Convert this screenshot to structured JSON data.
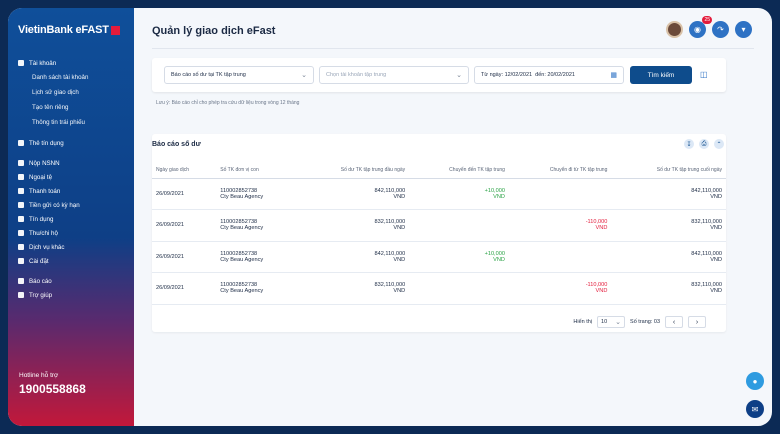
{
  "brand": "VietinBank eFAST",
  "sidebar": {
    "items": [
      {
        "label": "Tài khoản",
        "icon": "account-icon",
        "subs": [
          "Danh sách tài khoản",
          "Lịch sử giao dịch",
          "Tạo tên riêng",
          "Thông tin trái phiếu"
        ]
      },
      {
        "label": "Thẻ tín dụng",
        "icon": "credit-card-icon"
      },
      {
        "label": "Nộp NSNN",
        "icon": "tax-icon"
      },
      {
        "label": "Ngoại tệ",
        "icon": "currency-icon"
      },
      {
        "label": "Thanh toán",
        "icon": "payment-icon"
      },
      {
        "label": "Tiền gửi có kỳ hạn",
        "icon": "deposit-icon"
      },
      {
        "label": "Tín dụng",
        "icon": "loan-icon"
      },
      {
        "label": "Thu/chi hộ",
        "icon": "collection-icon"
      },
      {
        "label": "Dịch vụ khác",
        "icon": "services-icon"
      },
      {
        "label": "Cài đặt",
        "icon": "settings-icon"
      },
      {
        "label": "Báo cáo",
        "icon": "report-icon"
      },
      {
        "label": "Trợ giúp",
        "icon": "help-icon"
      }
    ],
    "hotline_label": "Hotline hỗ trợ",
    "hotline_number": "1900558868"
  },
  "header": {
    "title": "Quản lý giao dịch eFast",
    "notification_count": "25"
  },
  "filters": {
    "report_type": "Báo cáo số dư tại TK tập trung",
    "account_placeholder": "Chọn tài khoản tập trung",
    "from_label": "Từ ngày:",
    "from_date": "12/02/2021",
    "to_label": "đến:",
    "to_date": "20/02/2021",
    "search_label": "Tìm kiếm"
  },
  "note": "Lưu ý: Báo cáo chỉ cho phép tra cứu dữ liệu trong vòng 12 tháng",
  "report": {
    "title": "Báo cáo số dư",
    "columns": [
      "Ngày giao dịch",
      "Số TK đơn vị con",
      "Số dư TK tập trung đầu ngày",
      "Chuyển đến TK tập trung",
      "Chuyển đi từ TK tập trung",
      "Số dư TK tập trung cuối ngày"
    ],
    "rows": [
      {
        "date": "26/09/2021",
        "account": "110002852738",
        "name": "Cty Beau Agency",
        "opening": "842,110,000",
        "in": "+10,000",
        "out": "",
        "closing": "842,110,000",
        "currency": "VND"
      },
      {
        "date": "26/09/2021",
        "account": "110002852738",
        "name": "Cty Beau Agency",
        "opening": "832,110,000",
        "in": "",
        "out": "-110,000",
        "closing": "832,110,000",
        "currency": "VND"
      },
      {
        "date": "26/09/2021",
        "account": "110002852738",
        "name": "Cty Beau Agency",
        "opening": "842,110,000",
        "in": "+10,000",
        "out": "",
        "closing": "842,110,000",
        "currency": "VND"
      },
      {
        "date": "26/09/2021",
        "account": "110002852738",
        "name": "Cty Beau Agency",
        "opening": "832,110,000",
        "in": "",
        "out": "-110,000",
        "closing": "832,110,000",
        "currency": "VND"
      }
    ]
  },
  "pager": {
    "show_label": "Hiển thị",
    "page_size": "10",
    "pages_label": "Số trang: 03"
  }
}
